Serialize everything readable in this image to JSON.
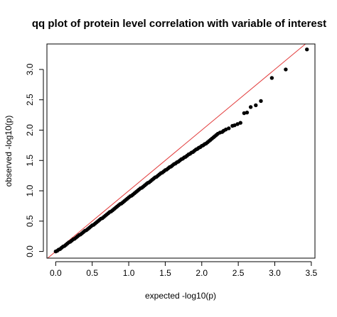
{
  "chart_data": {
    "type": "scatter",
    "title": "qq plot of protein level correlation with variable of interest",
    "xlabel": "expected -log10(p)",
    "ylabel": "observed -log10(p)",
    "xlim": [
      -0.12,
      3.55
    ],
    "ylim": [
      -0.11,
      3.42
    ],
    "x_ticks": [
      "0.0",
      "0.5",
      "1.0",
      "1.5",
      "2.0",
      "2.5",
      "3.0",
      "3.5"
    ],
    "y_ticks": [
      "0.0",
      "0.5",
      "1.0",
      "1.5",
      "2.0",
      "2.5",
      "3.0"
    ],
    "reference_line": {
      "slope": 1,
      "intercept": 0,
      "color": "#e23a3a"
    },
    "point_color": "#000000",
    "grid": false,
    "legend": "none",
    "series": [
      {
        "points": [
          [
            0.0,
            0.0
          ],
          [
            0.02,
            0.01
          ],
          [
            0.04,
            0.03
          ],
          [
            0.06,
            0.04
          ],
          [
            0.08,
            0.06
          ],
          [
            0.1,
            0.08
          ],
          [
            0.12,
            0.09
          ],
          [
            0.14,
            0.11
          ],
          [
            0.16,
            0.13
          ],
          [
            0.18,
            0.15
          ],
          [
            0.2,
            0.16
          ],
          [
            0.22,
            0.18
          ],
          [
            0.24,
            0.2
          ],
          [
            0.26,
            0.21
          ],
          [
            0.28,
            0.23
          ],
          [
            0.3,
            0.25
          ],
          [
            0.32,
            0.27
          ],
          [
            0.34,
            0.28
          ],
          [
            0.36,
            0.3
          ],
          [
            0.38,
            0.32
          ],
          [
            0.4,
            0.34
          ],
          [
            0.42,
            0.35
          ],
          [
            0.44,
            0.37
          ],
          [
            0.46,
            0.39
          ],
          [
            0.48,
            0.41
          ],
          [
            0.5,
            0.43
          ],
          [
            0.52,
            0.44
          ],
          [
            0.54,
            0.46
          ],
          [
            0.56,
            0.48
          ],
          [
            0.58,
            0.5
          ],
          [
            0.6,
            0.52
          ],
          [
            0.62,
            0.54
          ],
          [
            0.64,
            0.55
          ],
          [
            0.66,
            0.57
          ],
          [
            0.68,
            0.59
          ],
          [
            0.7,
            0.61
          ],
          [
            0.72,
            0.63
          ],
          [
            0.74,
            0.65
          ],
          [
            0.76,
            0.66
          ],
          [
            0.78,
            0.68
          ],
          [
            0.8,
            0.7
          ],
          [
            0.82,
            0.72
          ],
          [
            0.84,
            0.74
          ],
          [
            0.86,
            0.76
          ],
          [
            0.88,
            0.78
          ],
          [
            0.9,
            0.79
          ],
          [
            0.92,
            0.81
          ],
          [
            0.94,
            0.83
          ],
          [
            0.96,
            0.85
          ],
          [
            0.98,
            0.87
          ],
          [
            1.0,
            0.89
          ],
          [
            1.02,
            0.91
          ],
          [
            1.04,
            0.92
          ],
          [
            1.06,
            0.94
          ],
          [
            1.08,
            0.96
          ],
          [
            1.1,
            0.98
          ],
          [
            1.12,
            1.0
          ],
          [
            1.14,
            1.02
          ],
          [
            1.16,
            1.04
          ],
          [
            1.18,
            1.05
          ],
          [
            1.2,
            1.07
          ],
          [
            1.22,
            1.09
          ],
          [
            1.24,
            1.11
          ],
          [
            1.26,
            1.13
          ],
          [
            1.28,
            1.14
          ],
          [
            1.3,
            1.16
          ],
          [
            1.32,
            1.18
          ],
          [
            1.34,
            1.2
          ],
          [
            1.36,
            1.22
          ],
          [
            1.38,
            1.23
          ],
          [
            1.4,
            1.25
          ],
          [
            1.42,
            1.27
          ],
          [
            1.44,
            1.29
          ],
          [
            1.46,
            1.3
          ],
          [
            1.48,
            1.32
          ],
          [
            1.5,
            1.34
          ],
          [
            1.52,
            1.35
          ],
          [
            1.54,
            1.37
          ],
          [
            1.56,
            1.39
          ],
          [
            1.58,
            1.4
          ],
          [
            1.6,
            1.42
          ],
          [
            1.62,
            1.44
          ],
          [
            1.64,
            1.45
          ],
          [
            1.66,
            1.47
          ],
          [
            1.68,
            1.48
          ],
          [
            1.7,
            1.5
          ],
          [
            1.72,
            1.52
          ],
          [
            1.74,
            1.53
          ],
          [
            1.76,
            1.55
          ],
          [
            1.78,
            1.56
          ],
          [
            1.8,
            1.58
          ],
          [
            1.82,
            1.6
          ],
          [
            1.84,
            1.61
          ],
          [
            1.86,
            1.63
          ],
          [
            1.88,
            1.64
          ],
          [
            1.9,
            1.66
          ],
          [
            1.92,
            1.68
          ],
          [
            1.94,
            1.69
          ],
          [
            1.96,
            1.71
          ],
          [
            1.98,
            1.72
          ],
          [
            2.0,
            1.74
          ],
          [
            2.02,
            1.75
          ],
          [
            2.04,
            1.77
          ],
          [
            2.06,
            1.78
          ],
          [
            2.08,
            1.8
          ],
          [
            2.1,
            1.82
          ],
          [
            2.12,
            1.84
          ],
          [
            2.14,
            1.86
          ],
          [
            2.16,
            1.88
          ],
          [
            2.18,
            1.9
          ],
          [
            2.2,
            1.92
          ],
          [
            2.22,
            1.94
          ],
          [
            2.25,
            1.96
          ],
          [
            2.28,
            1.97
          ],
          [
            2.3,
            1.99
          ],
          [
            2.33,
            2.01
          ],
          [
            2.37,
            2.03
          ],
          [
            2.42,
            2.07
          ],
          [
            2.45,
            2.08
          ],
          [
            2.49,
            2.1
          ],
          [
            2.53,
            2.12
          ],
          [
            2.58,
            2.28
          ],
          [
            2.62,
            2.29
          ],
          [
            2.67,
            2.38
          ],
          [
            2.74,
            2.41
          ],
          [
            2.81,
            2.48
          ],
          [
            2.96,
            2.86
          ],
          [
            3.15,
            3.0
          ],
          [
            3.44,
            3.33
          ]
        ]
      }
    ]
  }
}
